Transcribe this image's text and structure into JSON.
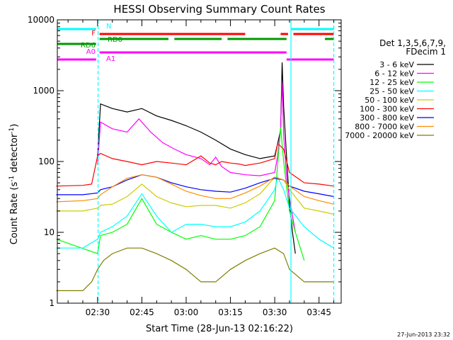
{
  "chart_data": {
    "type": "line",
    "title": "HESSI Observing Summary Count Rates",
    "xlabel": "Start Time (28-Jun-13 02:16:22)",
    "ylabel": "Count Rate (s⁻¹ detector⁻¹)",
    "ylabel_main": "Count Rate (s",
    "ylabel_mid": " detector",
    "ylabel_end": ")",
    "ylabel_sup": "-1",
    "yscale": "log",
    "ylim": [
      1,
      10000
    ],
    "xlim": [
      "02:16:22",
      "03:52:30"
    ],
    "grid": false,
    "x_ticks": [
      "02:30",
      "02:45",
      "03:00",
      "03:15",
      "03:30",
      "03:45"
    ],
    "y_ticks": [
      "1",
      "10",
      "100",
      "1000",
      "10000"
    ],
    "legend_position": "right",
    "legend_header": [
      "Det 1,3,5,6,7,9,",
      "FDecim 1"
    ],
    "footer_timestamp": "27-Jun-2013 23:32",
    "series": [
      {
        "name": "3 - 6 keV",
        "color": "#000000",
        "points": [
          [
            "02:30",
            120
          ],
          [
            "02:31",
            650
          ],
          [
            "02:35",
            560
          ],
          [
            "02:40",
            500
          ],
          [
            "02:45",
            560
          ],
          [
            "02:50",
            440
          ],
          [
            "02:55",
            380
          ],
          [
            "03:00",
            320
          ],
          [
            "03:05",
            260
          ],
          [
            "03:10",
            200
          ],
          [
            "03:15",
            150
          ],
          [
            "03:20",
            125
          ],
          [
            "03:25",
            110
          ],
          [
            "03:30",
            120
          ],
          [
            "03:31",
            180
          ],
          [
            "03:32",
            280
          ],
          [
            "03:32.5",
            2500
          ],
          [
            "03:33",
            600
          ],
          [
            "03:34",
            120
          ],
          [
            "03:35",
            25
          ],
          [
            "03:36",
            10
          ],
          [
            "03:37",
            5
          ]
        ]
      },
      {
        "name": "6 - 12 keV",
        "color": "#ff00ff",
        "points": [
          [
            "02:30",
            90
          ],
          [
            "02:31",
            360
          ],
          [
            "02:35",
            290
          ],
          [
            "02:40",
            260
          ],
          [
            "02:44",
            400
          ],
          [
            "02:48",
            260
          ],
          [
            "02:52",
            185
          ],
          [
            "02:56",
            150
          ],
          [
            "03:00",
            125
          ],
          [
            "03:05",
            110
          ],
          [
            "03:08",
            90
          ],
          [
            "03:10",
            115
          ],
          [
            "03:12",
            85
          ],
          [
            "03:15",
            70
          ],
          [
            "03:20",
            65
          ],
          [
            "03:25",
            63
          ],
          [
            "03:30",
            70
          ],
          [
            "03:31",
            120
          ],
          [
            "03:32",
            300
          ],
          [
            "03:32.5",
            1300
          ],
          [
            "03:33",
            250
          ],
          [
            "03:34",
            60
          ],
          [
            "03:35",
            30
          ],
          [
            "03:37",
            10
          ]
        ]
      },
      {
        "name": "12 - 25 keV",
        "color": "#00ff00",
        "points": [
          [
            "02:16",
            8
          ],
          [
            "02:30",
            5
          ],
          [
            "02:31",
            9
          ],
          [
            "02:35",
            10
          ],
          [
            "02:40",
            13
          ],
          [
            "02:45",
            30
          ],
          [
            "02:50",
            13
          ],
          [
            "02:55",
            10
          ],
          [
            "03:00",
            8
          ],
          [
            "03:05",
            9
          ],
          [
            "03:10",
            8
          ],
          [
            "03:15",
            8
          ],
          [
            "03:20",
            9
          ],
          [
            "03:25",
            12
          ],
          [
            "03:30",
            28
          ],
          [
            "03:32",
            300
          ],
          [
            "03:33",
            100
          ],
          [
            "03:35",
            20
          ],
          [
            "03:37",
            10
          ],
          [
            "03:40",
            4
          ]
        ]
      },
      {
        "name": "25 - 50 keV",
        "color": "#00ffff",
        "points": [
          [
            "02:16",
            6
          ],
          [
            "02:25",
            6
          ],
          [
            "02:30",
            8
          ],
          [
            "02:31",
            10
          ],
          [
            "02:35",
            12
          ],
          [
            "02:40",
            17
          ],
          [
            "02:45",
            35
          ],
          [
            "02:50",
            17
          ],
          [
            "02:55",
            10
          ],
          [
            "03:00",
            13
          ],
          [
            "03:05",
            13
          ],
          [
            "03:10",
            12
          ],
          [
            "03:15",
            12
          ],
          [
            "03:20",
            14
          ],
          [
            "03:25",
            20
          ],
          [
            "03:30",
            40
          ],
          [
            "03:31",
            60
          ],
          [
            "03:33",
            40
          ],
          [
            "03:35",
            22
          ],
          [
            "03:40",
            12
          ],
          [
            "03:45",
            8
          ],
          [
            "03:50",
            6
          ]
        ]
      },
      {
        "name": "50 - 100 keV",
        "color": "#cccc00",
        "points": [
          [
            "02:16",
            20
          ],
          [
            "02:25",
            20
          ],
          [
            "02:30",
            22
          ],
          [
            "02:31",
            24
          ],
          [
            "02:35",
            25
          ],
          [
            "02:40",
            32
          ],
          [
            "02:45",
            48
          ],
          [
            "02:50",
            32
          ],
          [
            "02:55",
            26
          ],
          [
            "03:00",
            23
          ],
          [
            "03:05",
            24
          ],
          [
            "03:10",
            24
          ],
          [
            "03:15",
            22
          ],
          [
            "03:20",
            26
          ],
          [
            "03:25",
            35
          ],
          [
            "03:30",
            60
          ],
          [
            "03:33",
            55
          ],
          [
            "03:35",
            40
          ],
          [
            "03:40",
            22
          ],
          [
            "03:45",
            20
          ],
          [
            "03:50",
            18
          ]
        ]
      },
      {
        "name": "100 - 300 keV",
        "color": "#ff0000",
        "points": [
          [
            "02:16",
            45
          ],
          [
            "02:25",
            46
          ],
          [
            "02:28",
            48
          ],
          [
            "02:30",
            120
          ],
          [
            "02:31",
            130
          ],
          [
            "02:35",
            110
          ],
          [
            "02:40",
            100
          ],
          [
            "02:45",
            90
          ],
          [
            "02:50",
            100
          ],
          [
            "02:55",
            95
          ],
          [
            "03:00",
            90
          ],
          [
            "03:05",
            120
          ],
          [
            "03:08",
            95
          ],
          [
            "03:10",
            90
          ],
          [
            "03:12",
            100
          ],
          [
            "03:15",
            95
          ],
          [
            "03:18",
            92
          ],
          [
            "03:20",
            88
          ],
          [
            "03:25",
            95
          ],
          [
            "03:30",
            110
          ],
          [
            "03:31",
            180
          ],
          [
            "03:33",
            150
          ],
          [
            "03:35",
            70
          ],
          [
            "03:40",
            50
          ],
          [
            "03:45",
            48
          ],
          [
            "03:50",
            45
          ]
        ]
      },
      {
        "name": "300 - 800 keV",
        "color": "#0000ff",
        "points": [
          [
            "02:16",
            34
          ],
          [
            "02:25",
            34
          ],
          [
            "02:30",
            36
          ],
          [
            "02:31",
            40
          ],
          [
            "02:35",
            44
          ],
          [
            "02:40",
            55
          ],
          [
            "02:45",
            65
          ],
          [
            "02:50",
            60
          ],
          [
            "02:55",
            50
          ],
          [
            "03:00",
            44
          ],
          [
            "03:05",
            40
          ],
          [
            "03:10",
            38
          ],
          [
            "03:15",
            37
          ],
          [
            "03:20",
            42
          ],
          [
            "03:25",
            50
          ],
          [
            "03:30",
            58
          ],
          [
            "03:33",
            55
          ],
          [
            "03:35",
            45
          ],
          [
            "03:40",
            38
          ],
          [
            "03:45",
            35
          ],
          [
            "03:50",
            32
          ]
        ]
      },
      {
        "name": "800 - 7000 keV",
        "color": "#ff8c00",
        "points": [
          [
            "02:16",
            27
          ],
          [
            "02:25",
            28
          ],
          [
            "02:30",
            30
          ],
          [
            "02:31",
            34
          ],
          [
            "02:35",
            44
          ],
          [
            "02:40",
            58
          ],
          [
            "02:45",
            65
          ],
          [
            "02:50",
            60
          ],
          [
            "02:55",
            48
          ],
          [
            "03:00",
            38
          ],
          [
            "03:05",
            33
          ],
          [
            "03:10",
            30
          ],
          [
            "03:15",
            30
          ],
          [
            "03:20",
            36
          ],
          [
            "03:25",
            45
          ],
          [
            "03:30",
            60
          ],
          [
            "03:33",
            55
          ],
          [
            "03:35",
            45
          ],
          [
            "03:40",
            32
          ],
          [
            "03:45",
            28
          ],
          [
            "03:50",
            25
          ]
        ]
      },
      {
        "name": "7000 - 20000 keV",
        "color": "#7f7f00",
        "points": [
          [
            "02:16",
            1.5
          ],
          [
            "02:25",
            1.5
          ],
          [
            "02:28",
            2
          ],
          [
            "02:30",
            3
          ],
          [
            "02:32",
            4
          ],
          [
            "02:35",
            5
          ],
          [
            "02:40",
            6
          ],
          [
            "02:45",
            6
          ],
          [
            "02:50",
            5
          ],
          [
            "02:55",
            4
          ],
          [
            "03:00",
            3
          ],
          [
            "03:05",
            2
          ],
          [
            "03:10",
            2
          ],
          [
            "03:15",
            3
          ],
          [
            "03:20",
            4
          ],
          [
            "03:25",
            5
          ],
          [
            "03:30",
            6
          ],
          [
            "03:33",
            5
          ],
          [
            "03:35",
            3
          ],
          [
            "03:40",
            2
          ],
          [
            "03:45",
            2
          ],
          [
            "03:50",
            2
          ]
        ]
      }
    ],
    "state_bars": [
      {
        "label": "N",
        "color": "#00ffff",
        "segments": [
          [
            "02:16:22",
            "02:29:30"
          ],
          [
            "03:35:40",
            "03:50:00"
          ]
        ]
      },
      {
        "label": "F",
        "color": "#ff0000",
        "segments": [
          [
            "02:30:40",
            "03:20:00"
          ],
          [
            "03:32:00",
            "03:34:30"
          ],
          [
            "03:36:20",
            "03:50:00"
          ]
        ]
      },
      {
        "label": "RD0",
        "color": "#009900",
        "segments": [
          [
            "02:30:40",
            "02:54:00"
          ],
          [
            "02:56:00",
            "03:12:00"
          ],
          [
            "03:14:00",
            "03:34:00"
          ],
          [
            "03:47:00",
            "03:50:00"
          ]
        ]
      },
      {
        "label": "RD6",
        "color": "#009900",
        "segments": [
          [
            "02:16:22",
            "02:29:30"
          ]
        ]
      },
      {
        "label": "A0",
        "color": "#ff00ff",
        "segments": [
          [
            "02:30:40",
            "03:34:00"
          ]
        ]
      },
      {
        "label": "A1",
        "color": "#ff00ff",
        "segments": [
          [
            "02:16:22",
            "02:29:30"
          ],
          [
            "03:34:00",
            "03:50:00"
          ]
        ]
      }
    ],
    "vertical_markers": [
      {
        "time": "02:30:10",
        "color": "#00ffff",
        "style": "dashed"
      },
      {
        "time": "03:35:30",
        "color": "#00ffff",
        "style": "solid"
      },
      {
        "time": "03:50:00",
        "color": "#00ffff",
        "style": "dashed"
      }
    ]
  }
}
